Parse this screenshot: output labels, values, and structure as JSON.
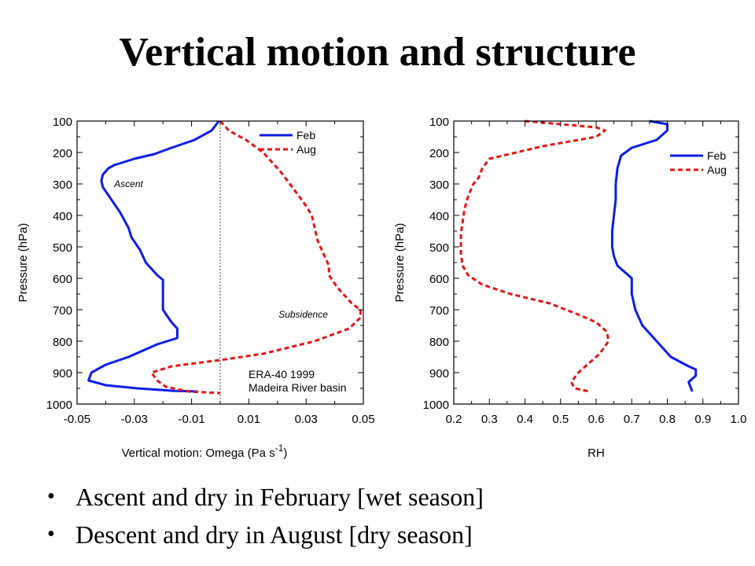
{
  "slide": {
    "title": "Vertical motion and structure",
    "bullets": [
      "Ascent and dry in February [wet season]",
      "Descent and dry in August [dry season]"
    ]
  },
  "colors": {
    "feb": "#0a1ee6",
    "aug": "#e61414",
    "axis": "#000000",
    "zero_line": "#444444"
  },
  "chart_data": [
    {
      "type": "line",
      "ylabel": "Pressure (hPa)",
      "xlabel": "Vertical motion: Omega (Pa s",
      "xlabel_sup": "-1",
      "xlabel_end": ")",
      "xlim": [
        -0.05,
        0.05
      ],
      "ylim": [
        100,
        1000
      ],
      "y_inverted": true,
      "x_ticks": [
        "-0.05",
        "-0.03",
        "-0.01",
        "0.01",
        "0.03",
        "0.05"
      ],
      "x_tick_values": [
        -0.05,
        -0.03,
        -0.01,
        0.01,
        0.03,
        0.05
      ],
      "y_ticks": [
        "100",
        "200",
        "300",
        "400",
        "500",
        "600",
        "700",
        "800",
        "900",
        "1000"
      ],
      "y_tick_values": [
        100,
        200,
        300,
        400,
        500,
        600,
        700,
        800,
        900,
        1000
      ],
      "zero_line": 0,
      "legend_position": "top-right",
      "annotations": [
        {
          "text": "Ascent",
          "x": -0.032,
          "y": 300
        },
        {
          "text": "Subsidence",
          "x": 0.029,
          "y": 715
        }
      ],
      "note_lines": [
        "ERA-40 1999",
        "Madeira River basin"
      ],
      "series": [
        {
          "name": "Feb",
          "style": "solid",
          "x": [
            -0.0005,
            -0.003,
            -0.009,
            -0.017,
            -0.023,
            -0.03,
            -0.037,
            -0.039,
            -0.041,
            -0.0415,
            -0.041,
            -0.038,
            -0.035,
            -0.032,
            -0.031,
            -0.028,
            -0.026,
            -0.022,
            -0.02,
            -0.02,
            -0.02,
            -0.017,
            -0.015,
            -0.015,
            -0.022,
            -0.032,
            -0.04,
            -0.045,
            -0.046,
            -0.04,
            -0.029,
            -0.016,
            -0.008
          ],
          "y": [
            100,
            130,
            160,
            185,
            205,
            220,
            240,
            250,
            270,
            290,
            310,
            350,
            390,
            440,
            470,
            510,
            550,
            590,
            605,
            650,
            700,
            740,
            760,
            790,
            810,
            850,
            875,
            900,
            925,
            940,
            950,
            958,
            960
          ]
        },
        {
          "name": "Aug",
          "style": "dashed",
          "x": [
            0.0,
            0.003,
            0.009,
            0.015,
            0.021,
            0.026,
            0.03,
            0.032,
            0.034,
            0.036,
            0.038,
            0.038,
            0.041,
            0.046,
            0.049,
            0.049,
            0.045,
            0.033,
            0.015,
            0.0,
            -0.017,
            -0.024,
            -0.022,
            -0.019,
            -0.011,
            -0.007,
            0.0
          ],
          "y": [
            100,
            130,
            160,
            200,
            260,
            320,
            370,
            400,
            480,
            520,
            560,
            590,
            630,
            680,
            700,
            725,
            760,
            800,
            840,
            860,
            880,
            900,
            925,
            945,
            960,
            962,
            965
          ]
        }
      ]
    },
    {
      "type": "line",
      "ylabel": "Pressure (hPa)",
      "xlabel": "RH",
      "xlim": [
        0.2,
        1.0
      ],
      "ylim": [
        100,
        1000
      ],
      "y_inverted": true,
      "x_ticks": [
        "0.2",
        "0.3",
        "0.4",
        "0.5",
        "0.6",
        "0.7",
        "0.8",
        "0.9",
        "1.0"
      ],
      "x_tick_values": [
        0.2,
        0.3,
        0.4,
        0.5,
        0.6,
        0.7,
        0.8,
        0.9,
        1.0
      ],
      "y_ticks": [
        "100",
        "200",
        "300",
        "400",
        "500",
        "600",
        "700",
        "800",
        "900",
        "1000"
      ],
      "y_tick_values": [
        100,
        200,
        300,
        400,
        500,
        600,
        700,
        800,
        900,
        1000
      ],
      "legend_position": "top-right",
      "series": [
        {
          "name": "Feb",
          "style": "solid",
          "x": [
            0.75,
            0.8,
            0.8,
            0.77,
            0.7,
            0.67,
            0.66,
            0.655,
            0.655,
            0.65,
            0.645,
            0.645,
            0.65,
            0.66,
            0.68,
            0.7,
            0.7,
            0.71,
            0.73,
            0.77,
            0.81,
            0.86,
            0.88,
            0.88,
            0.86,
            0.87
          ],
          "y": [
            100,
            110,
            130,
            160,
            185,
            210,
            250,
            300,
            350,
            400,
            450,
            500,
            530,
            560,
            580,
            600,
            650,
            700,
            750,
            800,
            850,
            880,
            890,
            910,
            930,
            960
          ]
        },
        {
          "name": "Aug",
          "style": "dashed",
          "x": [
            0.4,
            0.5,
            0.6,
            0.625,
            0.6,
            0.45,
            0.3,
            0.28,
            0.27,
            0.255,
            0.24,
            0.23,
            0.225,
            0.22,
            0.22,
            0.225,
            0.24,
            0.28,
            0.36,
            0.47,
            0.56,
            0.6,
            0.63,
            0.635,
            0.61,
            0.58,
            0.55,
            0.53,
            0.54,
            0.58
          ],
          "y": [
            100,
            110,
            120,
            130,
            150,
            180,
            220,
            250,
            280,
            300,
            340,
            380,
            420,
            460,
            520,
            560,
            590,
            620,
            650,
            680,
            720,
            740,
            770,
            800,
            840,
            870,
            900,
            930,
            950,
            960
          ]
        }
      ]
    }
  ]
}
